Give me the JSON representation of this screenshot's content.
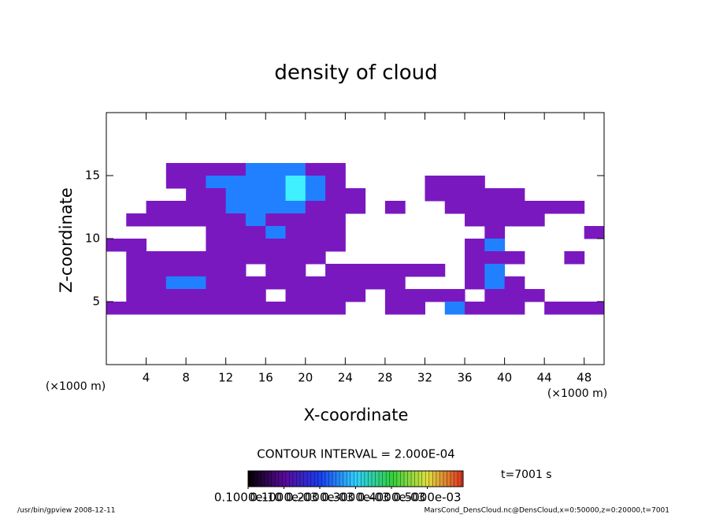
{
  "chart_data": {
    "type": "contour",
    "title": "density of cloud",
    "x_label": "X-coordinate",
    "y_label": "Z-coordinate",
    "x_unit": "(×1000 m)",
    "y_unit": "(×1000 m)",
    "contour_interval": "CONTOUR INTERVAL = 2.000E-04",
    "time_label": "t=7001 s",
    "footer_left": "/usr/bin/gpview  2008-12-11",
    "footer_right": "MarsCond_DensCloud.nc@DensCloud,x=0:50000,z=0:20000,t=7001",
    "xlim": [
      0,
      50
    ],
    "ylim": [
      0,
      20
    ],
    "xticks": [
      4,
      8,
      12,
      16,
      20,
      24,
      28,
      32,
      36,
      40,
      44,
      48
    ],
    "yticks": [
      5,
      10,
      15
    ],
    "x": [
      1,
      3,
      5,
      7,
      9,
      11,
      13,
      15,
      17,
      19,
      21,
      23,
      25,
      27,
      29,
      31,
      33,
      35,
      37,
      39,
      41,
      43,
      45,
      47,
      49
    ],
    "z": [
      15.5,
      14.5,
      13.5,
      12.5,
      11.5,
      10.5,
      9.5,
      8.5,
      7.5,
      6.5,
      5.5,
      4.5
    ],
    "values": [
      [
        0,
        0,
        0,
        0.0001,
        0.0001,
        0.0001,
        0.0001,
        0.0003,
        0.0003,
        0.0003,
        0.0001,
        0.0001,
        0,
        0,
        0,
        0,
        0,
        0,
        0,
        0,
        0,
        0,
        0,
        0,
        0
      ],
      [
        0,
        0,
        0,
        0.0001,
        0.0001,
        0.0003,
        0.0003,
        0.0003,
        0.0003,
        0.0005,
        0.0003,
        0.0001,
        0,
        0,
        0,
        0,
        0.0001,
        0.0001,
        0.0001,
        0,
        0,
        0,
        0,
        0,
        0
      ],
      [
        0,
        0,
        0,
        0,
        0.0001,
        0.0001,
        0.0003,
        0.0003,
        0.0003,
        0.0005,
        0.0003,
        0.0001,
        0.0001,
        0,
        0,
        0,
        0.0001,
        0.0001,
        0.0001,
        0.0001,
        0.0001,
        0,
        0,
        0,
        0
      ],
      [
        0,
        0,
        0.0001,
        0.0001,
        0.0001,
        0.0001,
        0.0003,
        0.0003,
        0.0003,
        0.0003,
        0.0001,
        0.0001,
        0.0001,
        0,
        0.0001,
        0,
        0,
        0.0001,
        0.0001,
        0.0001,
        0.0001,
        0.0001,
        0.0001,
        0.0001,
        0
      ],
      [
        0,
        0.0001,
        0.0001,
        0.0001,
        0.0001,
        0.0001,
        0.0001,
        0.0003,
        0.0001,
        0.0001,
        0.0001,
        0.0001,
        0,
        0,
        0,
        0,
        0,
        0,
        0.0001,
        0.0001,
        0.0001,
        0.0001,
        0,
        0,
        0
      ],
      [
        0,
        0,
        0,
        0,
        0,
        0.0001,
        0.0001,
        0.0001,
        0.0003,
        0.0001,
        0.0001,
        0.0001,
        0,
        0,
        0,
        0,
        0,
        0,
        0,
        0.0001,
        0,
        0,
        0,
        0,
        0.0001
      ],
      [
        0.0001,
        0.0001,
        0,
        0,
        0,
        0.0001,
        0.0001,
        0.0001,
        0.0001,
        0.0001,
        0.0001,
        0.0001,
        0,
        0,
        0,
        0,
        0,
        0,
        0.0001,
        0.0003,
        0,
        0,
        0,
        0,
        0
      ],
      [
        0,
        0.0001,
        0.0001,
        0.0001,
        0.0001,
        0.0001,
        0.0001,
        0.0001,
        0.0001,
        0.0001,
        0.0001,
        0,
        0,
        0,
        0,
        0,
        0,
        0,
        0.0001,
        0.0001,
        0.0001,
        0,
        0,
        0.0001,
        0
      ],
      [
        0,
        0.0001,
        0.0001,
        0.0001,
        0.0001,
        0.0001,
        0.0001,
        0,
        0.0001,
        0.0001,
        0,
        0.0001,
        0.0001,
        0.0001,
        0.0001,
        0.0001,
        0.0001,
        0,
        0.0001,
        0.0003,
        0,
        0,
        0,
        0,
        0
      ],
      [
        0,
        0.0001,
        0.0001,
        0.0003,
        0.0003,
        0.0001,
        0.0001,
        0.0001,
        0.0001,
        0.0001,
        0.0001,
        0.0001,
        0.0001,
        0.0001,
        0.0001,
        0,
        0,
        0,
        0.0001,
        0.0003,
        0.0001,
        0,
        0,
        0,
        0
      ],
      [
        0,
        0.0001,
        0.0001,
        0.0001,
        0.0001,
        0.0001,
        0.0001,
        0.0001,
        0,
        0.0001,
        0.0001,
        0.0001,
        0.0001,
        0,
        0.0001,
        0.0001,
        0.0001,
        0.0001,
        0,
        0.0001,
        0.0001,
        0.0001,
        0,
        0,
        0
      ],
      [
        0.0001,
        0.0001,
        0.0001,
        0.0001,
        0.0001,
        0.0001,
        0.0001,
        0.0001,
        0.0001,
        0.0001,
        0.0001,
        0.0001,
        0,
        0,
        0.0001,
        0.0001,
        0,
        0.0003,
        0.0001,
        0.0001,
        0.0001,
        0,
        0.0001,
        0.0001,
        0.0001
      ]
    ],
    "levels": [
      1e-11,
      0.0001,
      0.0002,
      0.0003,
      0.0004,
      0.0005
    ],
    "level_colors": [
      "#6a0fa8",
      "#7a18c0",
      "#1a3cf0",
      "#2080ff",
      "#30c0ff",
      "#40f0ff"
    ],
    "clim": [
      0,
      0.0006
    ],
    "colorbar_colors": [
      "#000000",
      "#5a0a9a",
      "#1a3cf0",
      "#30d0ff",
      "#30d040",
      "#e0e040",
      "#e03020"
    ],
    "cticks": [
      {
        "value": 1e-11,
        "label": "0.1000e-10"
      },
      {
        "value": 0.0001,
        "label": "0.1000e-03"
      },
      {
        "value": 0.0002,
        "label": "0.2000e-03"
      },
      {
        "value": 0.0003,
        "label": "0.3000e-03"
      },
      {
        "value": 0.0004,
        "label": "0.4000e-03"
      },
      {
        "value": 0.0005,
        "label": "0.5000e-03"
      }
    ]
  }
}
